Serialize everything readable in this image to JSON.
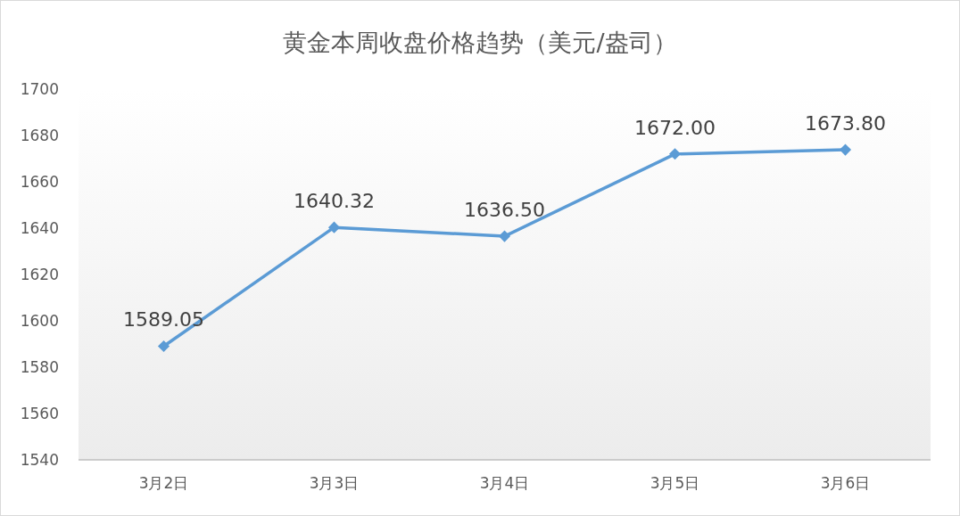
{
  "chart_data": {
    "type": "line",
    "title": "黄金本周收盘价格趋势（美元/盎司）",
    "categories": [
      "3月2日",
      "3月3日",
      "3月4日",
      "3月5日",
      "3月6日"
    ],
    "series": [
      {
        "color": "#5b9bd5",
        "values": [
          1589.05,
          1640.32,
          1636.5,
          1672,
          1673.8
        ],
        "value_labels": [
          "1589.05",
          "1640.32",
          "1636.50",
          "1672.00",
          "1673.80"
        ]
      }
    ],
    "ylim": [
      1540,
      1700
    ],
    "yticks": [
      1540,
      1560,
      1580,
      1600,
      1620,
      1640,
      1660,
      1680,
      1700
    ],
    "marker": "diamond",
    "line_style": "solid"
  }
}
